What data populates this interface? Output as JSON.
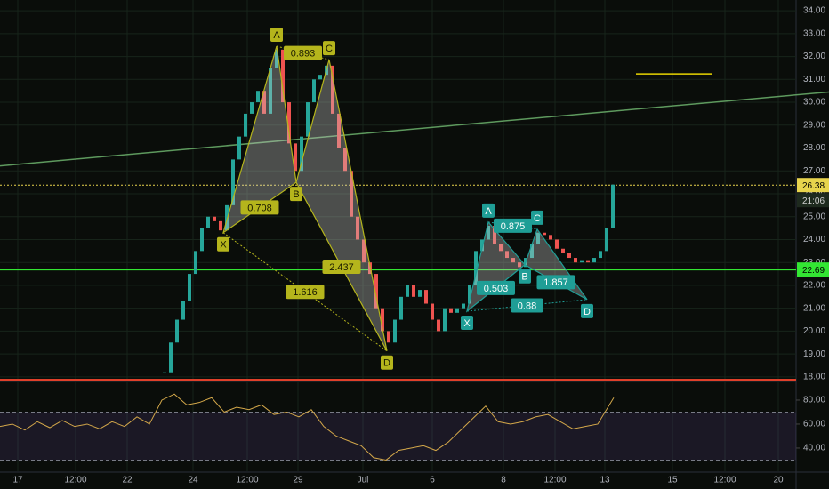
{
  "chart_data": [
    {
      "type": "candlestick",
      "x": [
        185,
        192,
        199,
        206,
        213,
        220,
        227,
        234,
        241,
        248,
        255,
        262,
        269,
        276,
        283,
        290,
        297,
        304,
        311,
        318,
        325,
        332,
        339,
        346,
        353,
        360,
        367,
        374,
        381,
        388,
        395,
        402,
        409,
        416,
        423,
        430,
        437,
        444,
        451,
        458,
        465,
        472,
        479,
        486,
        493,
        500,
        507,
        514,
        521,
        528,
        535,
        542,
        549,
        556,
        563,
        570,
        577,
        584,
        591,
        598,
        605,
        612,
        619,
        626,
        633,
        640,
        647,
        654,
        661,
        668,
        675,
        682,
        689
      ],
      "values": [
        18.2,
        19.5,
        20.5,
        21.3,
        22.5,
        23.5,
        24.5,
        25.0,
        24.8,
        24.4,
        25.5,
        27.5,
        28.5,
        29.5,
        30.0,
        30.5,
        29.5,
        31.5,
        32.3,
        30.0,
        28.2,
        27.0,
        28.5,
        30.0,
        31.0,
        31.2,
        31.6,
        29.5,
        28.0,
        27.0,
        25.0,
        24.0,
        23.0,
        22.5,
        21.0,
        20.0,
        19.5,
        20.5,
        21.5,
        22.0,
        21.5,
        21.8,
        21.2,
        20.5,
        20.0,
        21.0,
        20.8,
        21.0,
        21.2,
        22.0,
        23.5,
        24.0,
        24.6,
        23.8,
        23.5,
        23.2,
        23.0,
        22.8,
        23.2,
        23.8,
        24.3,
        24.2,
        24.0,
        23.6,
        23.4,
        23.2,
        23.0,
        23.1,
        23.0,
        23.2,
        23.5,
        24.5,
        26.4
      ],
      "up_color": "#26a69a",
      "down_color": "#ef5350",
      "xlim": [
        0,
        895
      ],
      "xticks": [
        {
          "value": 20,
          "label": "17"
        },
        {
          "value": 85,
          "label": "12:00"
        },
        {
          "value": 143,
          "label": "22"
        },
        {
          "value": 217,
          "label": "24"
        },
        {
          "value": 278,
          "label": "12:00"
        },
        {
          "value": 335,
          "label": "29"
        },
        {
          "value": 408,
          "label": "Jul"
        },
        {
          "value": 486,
          "label": "6"
        },
        {
          "value": 566,
          "label": "8"
        },
        {
          "value": 624,
          "label": "12:00"
        },
        {
          "value": 680,
          "label": "13"
        },
        {
          "value": 756,
          "label": "15"
        },
        {
          "value": 815,
          "label": "12:00"
        },
        {
          "value": 875,
          "label": "20"
        }
      ],
      "ylim": [
        17.84,
        34.47
      ],
      "yticks": [
        {
          "value": 18,
          "label": "18.00"
        },
        {
          "value": 19,
          "label": "19.00"
        },
        {
          "value": 20,
          "label": "20.00"
        },
        {
          "value": 21,
          "label": "21.00"
        },
        {
          "value": 22,
          "label": "22.00"
        },
        {
          "value": 23,
          "label": "23.00"
        },
        {
          "value": 24,
          "label": "24.00"
        },
        {
          "value": 25,
          "label": "25.00"
        },
        {
          "value": 26,
          "label": "26.00"
        },
        {
          "value": 27,
          "label": "27.00"
        },
        {
          "value": 28,
          "label": "28.00"
        },
        {
          "value": 29,
          "label": "29.00"
        },
        {
          "value": 30,
          "label": "30.00"
        },
        {
          "value": 31,
          "label": "31.00"
        },
        {
          "value": 32,
          "label": "32.00"
        },
        {
          "value": 33,
          "label": "33.00"
        },
        {
          "value": 34,
          "label": "34.00"
        }
      ],
      "grid": true,
      "levels": [
        {
          "price": 26.38,
          "color": "#e8d44d",
          "style": "dotted"
        },
        {
          "price": 22.69,
          "color": "#33e633",
          "style": "solid"
        },
        {
          "price": 17.88,
          "color": "#e0402a",
          "style": "solid"
        }
      ],
      "countdown": "21:06",
      "trendlines": [
        {
          "x": [
            0,
            932
          ],
          "values": [
            27.22,
            30.45
          ],
          "color": "#5e9a5e"
        },
        {
          "x": [
            715,
            800
          ],
          "values": [
            31.24,
            31.24
          ],
          "color": "#e8d400"
        }
      ],
      "patterns": [
        {
          "color": "#b5b51c",
          "text_color": "#1a1a00",
          "labels": [
            "X",
            "A",
            "B",
            "C",
            "D"
          ],
          "x": [
            251,
            311,
            333,
            370,
            435
          ],
          "values": [
            24.3,
            32.45,
            26.5,
            31.86,
            19.13
          ],
          "ratios": [
            {
              "text": "0.708",
              "between": [
                "X",
                "B"
              ]
            },
            {
              "text": "0.893",
              "between": [
                "A",
                "C"
              ]
            },
            {
              "text": "2.437",
              "between": [
                "B",
                "D"
              ]
            },
            {
              "text": "1.616",
              "between": [
                "X",
                "D"
              ]
            }
          ]
        },
        {
          "color": "#1f9e96",
          "text_color": "#ffffff",
          "labels": [
            "X",
            "A",
            "B",
            "C",
            "D"
          ],
          "x": [
            525,
            549,
            590,
            604,
            660
          ],
          "values": [
            20.87,
            24.76,
            22.9,
            24.45,
            21.38
          ],
          "ratios": [
            {
              "text": "0.503",
              "between": [
                "X",
                "B"
              ]
            },
            {
              "text": "0.875",
              "between": [
                "A",
                "C"
              ]
            },
            {
              "text": "1.857",
              "between": [
                "B",
                "D"
              ]
            },
            {
              "text": "0.88",
              "between": [
                "X",
                "D"
              ]
            }
          ]
        }
      ]
    },
    {
      "type": "line",
      "x": [
        0,
        14,
        28,
        42,
        56,
        70,
        84,
        98,
        112,
        126,
        140,
        154,
        168,
        182,
        196,
        210,
        224,
        238,
        252,
        266,
        280,
        294,
        308,
        322,
        336,
        350,
        364,
        378,
        392,
        406,
        420,
        434,
        448,
        462,
        476,
        490,
        504,
        518,
        532,
        546,
        560,
        574,
        588,
        602,
        616,
        630,
        644,
        658,
        672,
        690
      ],
      "values": [
        58,
        60,
        55,
        62,
        57,
        63,
        58,
        60,
        56,
        62,
        58,
        66,
        60,
        80,
        85,
        76,
        78,
        82,
        70,
        74,
        72,
        76,
        68,
        70,
        66,
        72,
        58,
        50,
        46,
        42,
        32,
        30,
        38,
        40,
        42,
        38,
        45,
        55,
        65,
        75,
        62,
        60,
        62,
        66,
        68,
        62,
        56,
        58,
        60,
        82
      ],
      "color": "#d4a84a",
      "xlim": [
        0,
        895
      ],
      "ylim": [
        20.7,
        94.8
      ],
      "yticks": [
        {
          "value": 40,
          "label": "40.00"
        },
        {
          "value": 60,
          "label": "60.00"
        },
        {
          "value": 80,
          "label": "80.00"
        }
      ],
      "band": [
        30,
        70
      ],
      "band_color": "#7e57c2"
    }
  ]
}
